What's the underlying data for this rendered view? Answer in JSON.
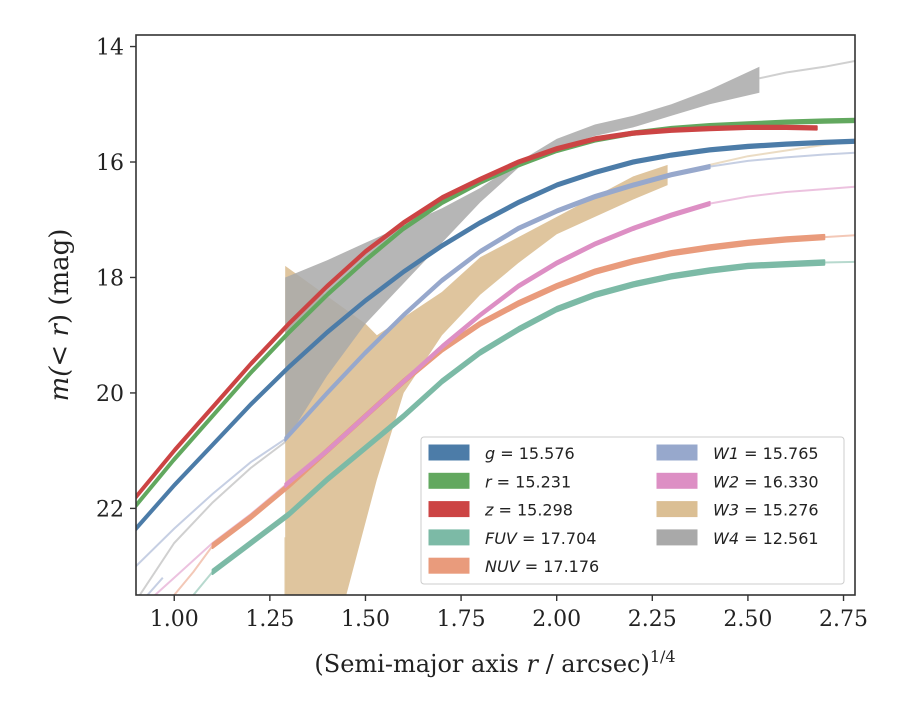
{
  "chart_data": {
    "type": "line",
    "xlabel_main": "(Semi-major axis ",
    "xlabel_var": "r",
    "xlabel_unit": " / arcsec)",
    "xlabel_sup": "1/4",
    "ylabel_pre": "m(< ",
    "ylabel_var": "r",
    "ylabel_post": ") (mag)",
    "xlim": [
      0.9,
      2.78
    ],
    "ylim": [
      23.5,
      13.8
    ],
    "y_inverted": true,
    "xticks": [
      "1.00",
      "1.25",
      "1.50",
      "1.75",
      "2.00",
      "2.25",
      "2.50",
      "2.75"
    ],
    "xtick_values": [
      1.0,
      1.25,
      1.5,
      1.75,
      2.0,
      2.25,
      2.5,
      2.75
    ],
    "yticks": [
      "14",
      "16",
      "18",
      "20",
      "22"
    ],
    "ytick_values": [
      14,
      16,
      18,
      20,
      22
    ],
    "grid": false,
    "legend_position": "lower-right",
    "series": [
      {
        "name": "g",
        "total": "15.576",
        "color": "#4c7ca8",
        "width": 0.06,
        "x_start": 0.9,
        "x_end": 2.78,
        "points": [
          [
            0.9,
            22.35
          ],
          [
            1.0,
            21.6
          ],
          [
            1.1,
            20.9
          ],
          [
            1.2,
            20.2
          ],
          [
            1.3,
            19.55
          ],
          [
            1.4,
            18.95
          ],
          [
            1.5,
            18.4
          ],
          [
            1.6,
            17.9
          ],
          [
            1.7,
            17.45
          ],
          [
            1.8,
            17.05
          ],
          [
            1.9,
            16.7
          ],
          [
            2.0,
            16.4
          ],
          [
            2.1,
            16.18
          ],
          [
            2.2,
            16.0
          ],
          [
            2.3,
            15.88
          ],
          [
            2.4,
            15.79
          ],
          [
            2.5,
            15.73
          ],
          [
            2.6,
            15.69
          ],
          [
            2.7,
            15.66
          ],
          [
            2.78,
            15.64
          ]
        ]
      },
      {
        "name": "r",
        "total": "15.231",
        "color": "#62a85f",
        "width": 0.06,
        "x_start": 0.9,
        "x_end": 2.78,
        "points": [
          [
            0.9,
            21.95
          ],
          [
            1.0,
            21.15
          ],
          [
            1.1,
            20.4
          ],
          [
            1.2,
            19.65
          ],
          [
            1.3,
            18.95
          ],
          [
            1.4,
            18.3
          ],
          [
            1.5,
            17.7
          ],
          [
            1.6,
            17.15
          ],
          [
            1.7,
            16.7
          ],
          [
            1.8,
            16.35
          ],
          [
            1.9,
            16.05
          ],
          [
            2.0,
            15.8
          ],
          [
            2.1,
            15.62
          ],
          [
            2.2,
            15.5
          ],
          [
            2.3,
            15.42
          ],
          [
            2.4,
            15.37
          ],
          [
            2.5,
            15.34
          ],
          [
            2.6,
            15.31
          ],
          [
            2.7,
            15.29
          ],
          [
            2.78,
            15.28
          ]
        ]
      },
      {
        "name": "z",
        "total": "15.298",
        "color": "#cc4444",
        "width": 0.06,
        "x_start": 0.9,
        "x_end": 2.68,
        "points": [
          [
            0.9,
            21.8
          ],
          [
            1.0,
            21.0
          ],
          [
            1.1,
            20.25
          ],
          [
            1.2,
            19.5
          ],
          [
            1.3,
            18.8
          ],
          [
            1.4,
            18.15
          ],
          [
            1.5,
            17.55
          ],
          [
            1.6,
            17.05
          ],
          [
            1.7,
            16.62
          ],
          [
            1.8,
            16.3
          ],
          [
            1.9,
            16.0
          ],
          [
            2.0,
            15.77
          ],
          [
            2.1,
            15.6
          ],
          [
            2.2,
            15.5
          ],
          [
            2.3,
            15.45
          ],
          [
            2.4,
            15.42
          ],
          [
            2.5,
            15.4
          ],
          [
            2.6,
            15.4
          ],
          [
            2.68,
            15.41
          ]
        ]
      },
      {
        "name": "FUV",
        "total": "17.704",
        "color": "#7cbaa6",
        "width": 0.08,
        "x_start": 1.1,
        "x_end": 2.7,
        "points": [
          [
            1.1,
            23.1
          ],
          [
            1.2,
            22.6
          ],
          [
            1.3,
            22.1
          ],
          [
            1.4,
            21.5
          ],
          [
            1.5,
            20.95
          ],
          [
            1.6,
            20.4
          ],
          [
            1.7,
            19.8
          ],
          [
            1.8,
            19.3
          ],
          [
            1.9,
            18.9
          ],
          [
            2.0,
            18.55
          ],
          [
            2.1,
            18.3
          ],
          [
            2.2,
            18.12
          ],
          [
            2.3,
            17.98
          ],
          [
            2.4,
            17.88
          ],
          [
            2.5,
            17.8
          ],
          [
            2.6,
            17.77
          ],
          [
            2.7,
            17.74
          ]
        ]
      },
      {
        "name": "NUV",
        "total": "17.176",
        "color": "#e99b7c",
        "width": 0.08,
        "x_start": 1.1,
        "x_end": 2.7,
        "points": [
          [
            1.1,
            22.65
          ],
          [
            1.2,
            22.15
          ],
          [
            1.3,
            21.6
          ],
          [
            1.4,
            21.0
          ],
          [
            1.5,
            20.4
          ],
          [
            1.6,
            19.8
          ],
          [
            1.7,
            19.25
          ],
          [
            1.8,
            18.8
          ],
          [
            1.9,
            18.45
          ],
          [
            2.0,
            18.15
          ],
          [
            2.1,
            17.9
          ],
          [
            2.2,
            17.72
          ],
          [
            2.3,
            17.58
          ],
          [
            2.4,
            17.48
          ],
          [
            2.5,
            17.4
          ],
          [
            2.6,
            17.34
          ],
          [
            2.7,
            17.3
          ]
        ]
      },
      {
        "name": "W1",
        "total": "15.765",
        "color": "#97a8cc",
        "width": 0.06,
        "x_start": 1.29,
        "x_end": 2.4,
        "points": [
          [
            1.29,
            20.8
          ],
          [
            1.4,
            20.0
          ],
          [
            1.5,
            19.3
          ],
          [
            1.6,
            18.65
          ],
          [
            1.7,
            18.05
          ],
          [
            1.8,
            17.55
          ],
          [
            1.9,
            17.15
          ],
          [
            2.0,
            16.85
          ],
          [
            2.1,
            16.6
          ],
          [
            2.2,
            16.4
          ],
          [
            2.3,
            16.22
          ],
          [
            2.4,
            16.08
          ]
        ]
      },
      {
        "name": "W2",
        "total": "16.330",
        "color": "#dd8fc4",
        "width": 0.06,
        "x_start": 1.29,
        "x_end": 2.4,
        "points": [
          [
            1.29,
            21.6
          ],
          [
            1.4,
            21.0
          ],
          [
            1.5,
            20.4
          ],
          [
            1.6,
            19.8
          ],
          [
            1.7,
            19.2
          ],
          [
            1.8,
            18.65
          ],
          [
            1.9,
            18.15
          ],
          [
            2.0,
            17.75
          ],
          [
            2.1,
            17.42
          ],
          [
            2.2,
            17.15
          ],
          [
            2.3,
            16.92
          ],
          [
            2.4,
            16.72
          ]
        ]
      },
      {
        "name": "W3",
        "total": "15.276",
        "color": "#dbbf94",
        "width": 0,
        "x_start": 1.29,
        "x_end": 2.29,
        "points": []
      },
      {
        "name": "W4",
        "total": "12.561",
        "color": "#a9a9a9",
        "width": 0,
        "x_start": 1.29,
        "x_end": 2.53,
        "points": []
      }
    ],
    "w3_band": {
      "upper": [
        [
          1.29,
          17.8
        ],
        [
          1.5,
          18.8
        ],
        [
          1.53,
          19.0
        ],
        [
          1.7,
          18.25
        ],
        [
          1.8,
          17.65
        ],
        [
          1.9,
          17.3
        ],
        [
          2.0,
          16.95
        ],
        [
          2.1,
          16.6
        ],
        [
          2.2,
          16.25
        ],
        [
          2.29,
          16.05
        ]
      ],
      "lower": [
        [
          2.29,
          16.4
        ],
        [
          2.2,
          16.65
        ],
        [
          2.1,
          16.95
        ],
        [
          2.0,
          17.25
        ],
        [
          1.9,
          17.75
        ],
        [
          1.8,
          18.3
        ],
        [
          1.7,
          19.0
        ],
        [
          1.6,
          20.0
        ],
        [
          1.53,
          21.5
        ],
        [
          1.45,
          23.5
        ],
        [
          1.29,
          23.5
        ]
      ]
    },
    "w4_band": {
      "upper": [
        [
          1.29,
          18.0
        ],
        [
          1.4,
          17.7
        ],
        [
          1.5,
          17.4
        ],
        [
          1.6,
          17.1
        ],
        [
          1.7,
          16.8
        ],
        [
          1.8,
          16.45
        ],
        [
          1.9,
          16.0
        ],
        [
          2.0,
          15.6
        ],
        [
          2.1,
          15.35
        ],
        [
          2.2,
          15.2
        ],
        [
          2.3,
          15.0
        ],
        [
          2.4,
          14.75
        ],
        [
          2.53,
          14.35
        ]
      ],
      "lower": [
        [
          2.53,
          14.8
        ],
        [
          2.4,
          15.0
        ],
        [
          2.3,
          15.2
        ],
        [
          2.2,
          15.4
        ],
        [
          2.1,
          15.55
        ],
        [
          2.0,
          15.75
        ],
        [
          1.9,
          16.1
        ],
        [
          1.8,
          16.7
        ],
        [
          1.7,
          17.4
        ],
        [
          1.6,
          18.1
        ],
        [
          1.5,
          18.8
        ],
        [
          1.4,
          19.7
        ],
        [
          1.29,
          20.85
        ]
      ]
    },
    "extrapolations": [
      {
        "name": "g",
        "color": "#4c7ca8",
        "points": [
          [
            2.7,
            15.66
          ],
          [
            2.78,
            15.64
          ]
        ]
      },
      {
        "name": "W1",
        "color": "#97a8cc",
        "points": [
          [
            2.4,
            16.08
          ],
          [
            2.5,
            15.98
          ],
          [
            2.6,
            15.92
          ],
          [
            2.7,
            15.87
          ],
          [
            2.78,
            15.84
          ]
        ]
      },
      {
        "name": "W2",
        "color": "#dd8fc4",
        "points": [
          [
            2.4,
            16.72
          ],
          [
            2.5,
            16.6
          ],
          [
            2.6,
            16.52
          ],
          [
            2.7,
            16.47
          ],
          [
            2.78,
            16.43
          ]
        ]
      },
      {
        "name": "W3",
        "color": "#dbbf94",
        "points": [
          [
            2.29,
            16.25
          ],
          [
            2.4,
            16.05
          ],
          [
            2.5,
            15.9
          ],
          [
            2.6,
            15.8
          ],
          [
            2.7,
            15.7
          ],
          [
            2.78,
            15.65
          ]
        ]
      },
      {
        "name": "W4",
        "color": "#a9a9a9",
        "points": [
          [
            2.53,
            14.55
          ],
          [
            2.6,
            14.45
          ],
          [
            2.7,
            14.35
          ],
          [
            2.78,
            14.25
          ]
        ]
      },
      {
        "name": "FUV",
        "color": "#7cbaa6",
        "points": [
          [
            2.7,
            17.74
          ],
          [
            2.78,
            17.73
          ]
        ]
      },
      {
        "name": "NUV",
        "color": "#e99b7c",
        "points": [
          [
            2.7,
            17.3
          ],
          [
            2.78,
            17.27
          ]
        ]
      },
      {
        "name": "W1",
        "color": "#97a8cc",
        "points": [
          [
            0.9,
            23.0
          ],
          [
            1.0,
            22.35
          ],
          [
            1.1,
            21.75
          ],
          [
            1.2,
            21.2
          ],
          [
            1.29,
            20.8
          ]
        ]
      },
      {
        "name": "W2",
        "color": "#dd8fc4",
        "points": [
          [
            0.95,
            23.5
          ],
          [
            1.0,
            23.2
          ],
          [
            1.1,
            22.6
          ],
          [
            1.2,
            22.1
          ],
          [
            1.29,
            21.6
          ]
        ]
      },
      {
        "name": "W4",
        "color": "#a9a9a9",
        "points": [
          [
            0.91,
            23.5
          ],
          [
            1.0,
            22.6
          ],
          [
            1.1,
            21.9
          ],
          [
            1.2,
            21.3
          ],
          [
            1.29,
            20.85
          ]
        ]
      },
      {
        "name": "W3",
        "color": "#dbbf94",
        "points": [
          [
            1.29,
            23.5
          ],
          [
            1.29,
            22.5
          ]
        ]
      },
      {
        "name": "NUV",
        "color": "#e99b7c",
        "points": [
          [
            1.0,
            23.5
          ],
          [
            1.05,
            23.1
          ],
          [
            1.1,
            22.65
          ]
        ]
      },
      {
        "name": "FUV",
        "color": "#7cbaa6",
        "points": [
          [
            1.05,
            23.5
          ],
          [
            1.1,
            23.1
          ]
        ]
      },
      {
        "name": "W1",
        "color": "#97a8cc",
        "points": [
          [
            0.93,
            23.5
          ],
          [
            0.97,
            23.2
          ]
        ]
      }
    ]
  }
}
